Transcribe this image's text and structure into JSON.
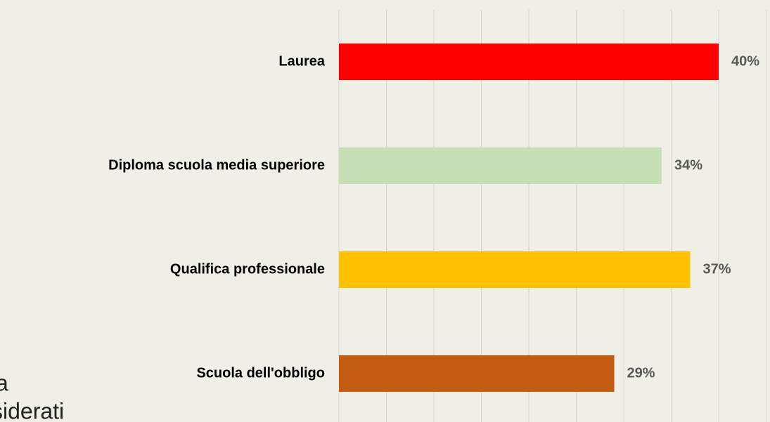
{
  "chart_data": {
    "type": "barh",
    "categories": [
      "Laurea",
      "Diploma scuola media superiore",
      "Qualifica  professionale",
      "Scuola dell'obbligo"
    ],
    "values": [
      40,
      34,
      37,
      29
    ],
    "value_labels": [
      "40%",
      "34%",
      "37%",
      "29%"
    ],
    "colors": [
      "#ff0000",
      "#c5e0b4",
      "#ffc000",
      "#c55a11"
    ],
    "xlim": [
      0,
      45
    ],
    "xticks": [
      0,
      5,
      10,
      15,
      20,
      25,
      30,
      35,
      40,
      45
    ],
    "grid": true
  },
  "background_text": [
    "a",
    "siderati"
  ]
}
